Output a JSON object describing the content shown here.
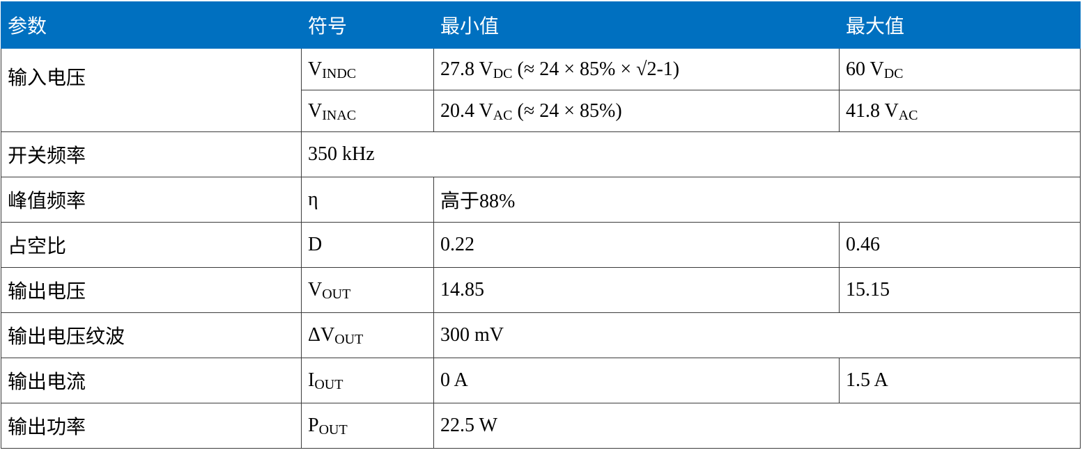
{
  "table": {
    "header": [
      "参数",
      "符号",
      "最小值",
      "最大值"
    ],
    "rows": [
      [
        "输入电压",
        [
          "V",
          "INDC"
        ],
        [
          "27.8 V",
          "DC",
          " (≈ 24 × 85% × √2-1)"
        ],
        [
          "60 V",
          "DC"
        ]
      ],
      [
        [
          "V",
          "INAC"
        ],
        [
          "20.4 V",
          "AC",
          " (≈ 24 × 85%)"
        ],
        [
          "41.8 V",
          "AC"
        ]
      ],
      [
        "开关频率",
        "350 kHz"
      ],
      [
        "峰值频率",
        "η",
        "高于88%"
      ],
      [
        "占空比",
        "D",
        "0.22",
        "0.46"
      ],
      [
        "输出电压",
        [
          "V",
          "OUT"
        ],
        "14.85",
        "15.15"
      ],
      [
        "输出电压纹波",
        [
          "ΔV",
          "OUT"
        ],
        "300 mV"
      ],
      [
        "输出电流",
        [
          "I",
          "OUT"
        ],
        "0 A",
        "1.5 A"
      ],
      [
        "输出功率",
        [
          "P",
          "OUT"
        ],
        "22.5 W"
      ]
    ]
  }
}
